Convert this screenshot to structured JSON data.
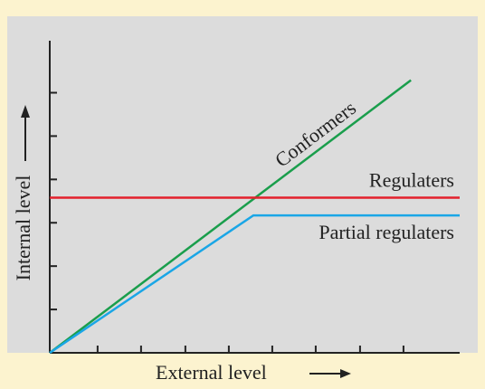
{
  "chart_data": {
    "type": "line",
    "x_label": "External level",
    "y_label": "Internal level",
    "xlim": [
      0,
      9.34
    ],
    "ylim": [
      0,
      7.2
    ],
    "xticks": [
      1.09,
      2.08,
      3.09,
      4.08,
      5.07,
      6.06,
      7.07,
      8.06
    ],
    "yticks": [
      1,
      2,
      3,
      4,
      5,
      6
    ],
    "series": [
      {
        "name": "Conformers",
        "color": "#1a9e4c",
        "x": [
          0,
          8.23
        ],
        "values": [
          0,
          6.29
        ]
      },
      {
        "name": "Regulaters",
        "color": "#e3202c",
        "x": [
          0,
          9.34
        ],
        "values": [
          3.58,
          3.58
        ]
      },
      {
        "name": "Partial regulaters",
        "color": "#1aa6e6",
        "x": [
          0,
          4.64,
          9.34
        ],
        "values": [
          0,
          3.17,
          3.17
        ]
      }
    ]
  }
}
